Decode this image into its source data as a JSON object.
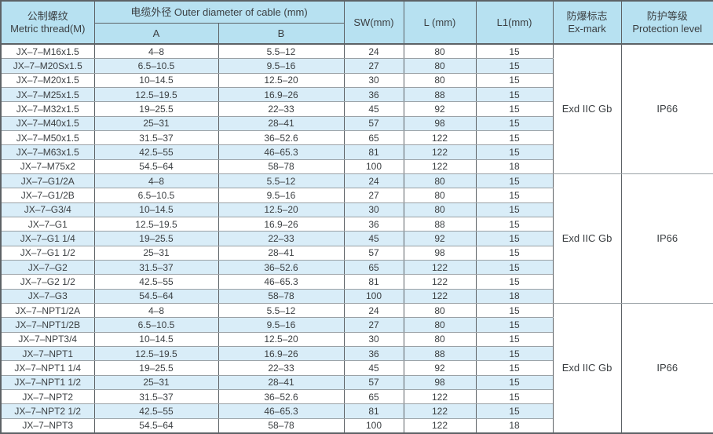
{
  "colors": {
    "header_bg": "#b7e1f1",
    "stripe_bg": "#d9edf8",
    "row_bg": "#ffffff",
    "border_vertical": "#5d6266",
    "border_horizontal": "#9aa1a6",
    "text": "#3b3f42"
  },
  "table": {
    "header": {
      "metric_zh": "公制螺纹",
      "metric_en": "Metric thread(M)",
      "outer_diameter": "电缆外径 Outer diameter of cable (mm)",
      "sub_a": "A",
      "sub_b": "B",
      "sw": "SW(mm)",
      "l": "L (mm)",
      "l1": "L1(mm)",
      "ex_zh": "防爆标志",
      "ex_en": "Ex-mark",
      "prot_zh": "防护等级",
      "prot_en": "Protection level"
    },
    "groups": [
      {
        "ex_mark": "Exd IIC Gb",
        "protection": "IP66",
        "rows": [
          {
            "model": "JX–7–M16x1.5",
            "a": "4–8",
            "b": "5.5–12",
            "sw": "24",
            "l": "80",
            "l1": "15"
          },
          {
            "model": "JX–7–M20Sx1.5",
            "a": "6.5–10.5",
            "b": "9.5–16",
            "sw": "27",
            "l": "80",
            "l1": "15"
          },
          {
            "model": "JX–7–M20x1.5",
            "a": "10–14.5",
            "b": "12.5–20",
            "sw": "30",
            "l": "80",
            "l1": "15"
          },
          {
            "model": "JX–7–M25x1.5",
            "a": "12.5–19.5",
            "b": "16.9–26",
            "sw": "36",
            "l": "88",
            "l1": "15"
          },
          {
            "model": "JX–7–M32x1.5",
            "a": "19–25.5",
            "b": "22–33",
            "sw": "45",
            "l": "92",
            "l1": "15"
          },
          {
            "model": "JX–7–M40x1.5",
            "a": "25–31",
            "b": "28–41",
            "sw": "57",
            "l": "98",
            "l1": "15"
          },
          {
            "model": "JX–7–M50x1.5",
            "a": "31.5–37",
            "b": "36–52.6",
            "sw": "65",
            "l": "122",
            "l1": "15"
          },
          {
            "model": "JX–7–M63x1.5",
            "a": "42.5–55",
            "b": "46–65.3",
            "sw": "81",
            "l": "122",
            "l1": "15"
          },
          {
            "model": "JX–7–M75x2",
            "a": "54.5–64",
            "b": "58–78",
            "sw": "100",
            "l": "122",
            "l1": "18"
          }
        ]
      },
      {
        "ex_mark": "Exd IIC Gb",
        "protection": "IP66",
        "rows": [
          {
            "model": "JX–7–G1/2A",
            "a": "4–8",
            "b": "5.5–12",
            "sw": "24",
            "l": "80",
            "l1": "15"
          },
          {
            "model": "JX–7–G1/2B",
            "a": "6.5–10.5",
            "b": "9.5–16",
            "sw": "27",
            "l": "80",
            "l1": "15"
          },
          {
            "model": "JX–7–G3/4",
            "a": "10–14.5",
            "b": "12.5–20",
            "sw": "30",
            "l": "80",
            "l1": "15"
          },
          {
            "model": "JX–7–G1",
            "a": "12.5–19.5",
            "b": "16.9–26",
            "sw": "36",
            "l": "88",
            "l1": "15"
          },
          {
            "model": "JX–7–G1 1/4",
            "a": "19–25.5",
            "b": "22–33",
            "sw": "45",
            "l": "92",
            "l1": "15"
          },
          {
            "model": "JX–7–G1 1/2",
            "a": "25–31",
            "b": "28–41",
            "sw": "57",
            "l": "98",
            "l1": "15"
          },
          {
            "model": "JX–7–G2",
            "a": "31.5–37",
            "b": "36–52.6",
            "sw": "65",
            "l": "122",
            "l1": "15"
          },
          {
            "model": "JX–7–G2 1/2",
            "a": "42.5–55",
            "b": "46–65.3",
            "sw": "81",
            "l": "122",
            "l1": "15"
          },
          {
            "model": "JX–7–G3",
            "a": "54.5–64",
            "b": "58–78",
            "sw": "100",
            "l": "122",
            "l1": "18"
          }
        ]
      },
      {
        "ex_mark": "Exd IIC Gb",
        "protection": "IP66",
        "rows": [
          {
            "model": "JX–7–NPT1/2A",
            "a": "4–8",
            "b": "5.5–12",
            "sw": "24",
            "l": "80",
            "l1": "15"
          },
          {
            "model": "JX–7–NPT1/2B",
            "a": "6.5–10.5",
            "b": "9.5–16",
            "sw": "27",
            "l": "80",
            "l1": "15"
          },
          {
            "model": "JX–7–NPT3/4",
            "a": "10–14.5",
            "b": "12.5–20",
            "sw": "30",
            "l": "80",
            "l1": "15"
          },
          {
            "model": "JX–7–NPT1",
            "a": "12.5–19.5",
            "b": "16.9–26",
            "sw": "36",
            "l": "88",
            "l1": "15"
          },
          {
            "model": "JX–7–NPT1 1/4",
            "a": "19–25.5",
            "b": "22–33",
            "sw": "45",
            "l": "92",
            "l1": "15"
          },
          {
            "model": "JX–7–NPT1 1/2",
            "a": "25–31",
            "b": "28–41",
            "sw": "57",
            "l": "98",
            "l1": "15"
          },
          {
            "model": "JX–7–NPT2",
            "a": "31.5–37",
            "b": "36–52.6",
            "sw": "65",
            "l": "122",
            "l1": "15"
          },
          {
            "model": "JX–7–NPT2 1/2",
            "a": "42.5–55",
            "b": "46–65.3",
            "sw": "81",
            "l": "122",
            "l1": "15"
          },
          {
            "model": "JX–7–NPT3",
            "a": "54.5–64",
            "b": "58–78",
            "sw": "100",
            "l": "122",
            "l1": "18"
          }
        ]
      }
    ]
  }
}
